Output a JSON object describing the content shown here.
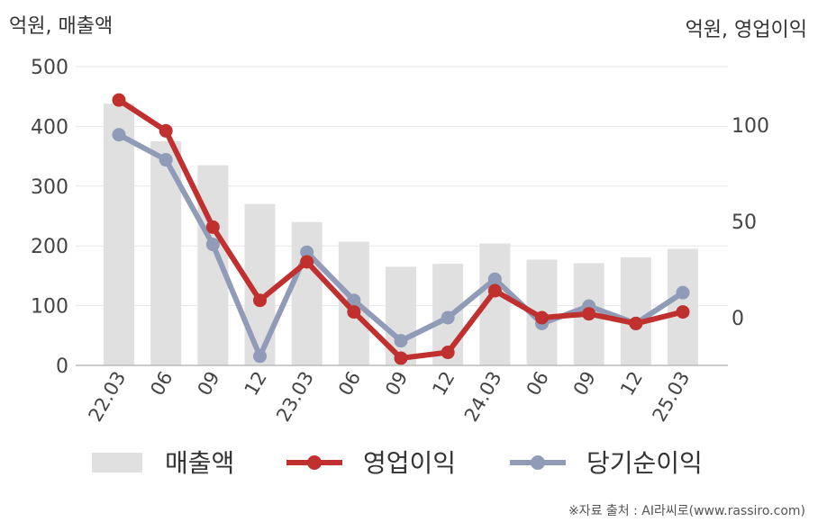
{
  "chart_data": {
    "type": "bar+line",
    "left_axis_label": "억원, 매출액",
    "right_axis_label": "억원, 영업이익",
    "categories": [
      "22.03",
      "06",
      "09",
      "12",
      "23.03",
      "06",
      "09",
      "12",
      "24.03",
      "06",
      "09",
      "12",
      "25.03"
    ],
    "left_ylim": [
      0,
      500
    ],
    "left_ticks": [
      0,
      100,
      200,
      300,
      400,
      500
    ],
    "right_ylim": [
      -25,
      130
    ],
    "right_ticks": [
      0,
      50,
      100
    ],
    "series": [
      {
        "name": "매출액",
        "kind": "bar",
        "axis": "left",
        "color": "#e0e0e0",
        "values": [
          438,
          375,
          335,
          270,
          240,
          207,
          165,
          170,
          204,
          177,
          171,
          181,
          195
        ]
      },
      {
        "name": "영업이익",
        "kind": "line",
        "axis": "right",
        "color": "#c0302f",
        "values": [
          113,
          97,
          47,
          9,
          29,
          3,
          -21,
          -18,
          14,
          0,
          2,
          -3,
          3
        ]
      },
      {
        "name": "당기순이익",
        "kind": "line",
        "axis": "right",
        "color": "#8f9bb7",
        "values": [
          95,
          82,
          38,
          -20,
          34,
          9,
          -12,
          0,
          20,
          -3,
          6,
          -3,
          13
        ]
      }
    ],
    "grid": true,
    "legend_position": "bottom"
  },
  "source": "※자료 출처 : AI라씨로(www.rassiro.com)"
}
